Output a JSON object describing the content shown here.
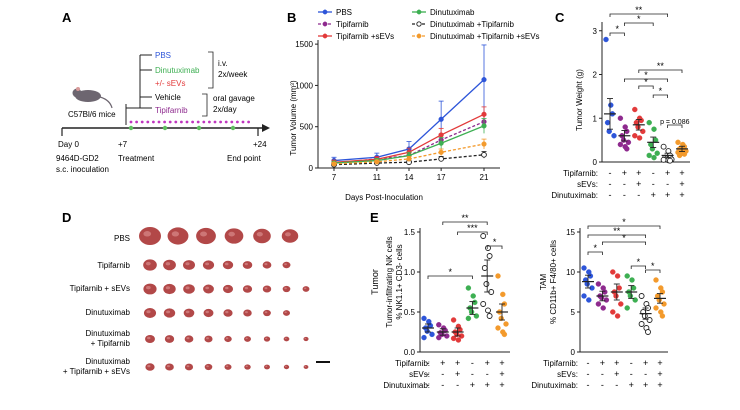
{
  "colors": {
    "pbs": "#2d55d9",
    "tipifarnib": "#8e2a8e",
    "tip_sevs": "#e23a3a",
    "dinutuximab": "#3daf52",
    "dinu_tip": "#222222",
    "dinu_tip_sevs": "#f39a2c",
    "treatment_dot": "#c036c0",
    "timeline_green": "#5fbf5f",
    "tumor": "#b24848"
  },
  "panel_labels": {
    "a": "A",
    "b": "B",
    "c": "C",
    "d": "D",
    "e": "E"
  },
  "panel_a": {
    "mouse_strain": "C57Bl/6 mice",
    "arm_pbs": "PBS",
    "arm_dinutuximab": "Dinutuximab",
    "arm_sevs": "+/- sEVs",
    "arm_vehicle": "Vehicle",
    "arm_tipifarnib": "Tipifarnib",
    "route_iv": "i.v.",
    "freq_iv": "2x/week",
    "route_oral": "oral gavage",
    "freq_oral": "2x/day",
    "day0": "Day 0",
    "day7": "+7",
    "day24": "+24",
    "inoculation_1": "9464D-GD2",
    "inoculation_2": "s.c. inoculation",
    "treatment": "Treatment",
    "end_point": "End point"
  },
  "panel_d": {
    "rows": [
      "PBS",
      "Tipifarnib",
      "Tipifarnib + sEVs",
      "Dinutuximab",
      "Dinutuximab",
      "+ Tipifarnib",
      "Dinutuximab",
      "+ Tipifarnib + sEVs"
    ],
    "tumor_counts": [
      6,
      8,
      9,
      8,
      9,
      9
    ],
    "tumor_size_level": [
      1.0,
      0.62,
      0.6,
      0.55,
      0.45,
      0.42
    ]
  },
  "condition_table": {
    "row_tip": "Tipifarnib:",
    "row_sevs": "sEVs:",
    "row_dinu": "Dinutuximab:",
    "tip": [
      "-",
      "+",
      "+",
      "-",
      "+",
      "+"
    ],
    "sevs": [
      "-",
      "-",
      "+",
      "-",
      "-",
      "+"
    ],
    "dinu": [
      "-",
      "-",
      "-",
      "+",
      "+",
      "+"
    ]
  },
  "chart_data": [
    {
      "type": "line",
      "panel": "B",
      "xlabel": "Days Post-Inoculation",
      "ylabel": "Tumor Volume (mm³)",
      "x": [
        7,
        11,
        14,
        17,
        21
      ],
      "xticks": [
        "7",
        "11",
        "14",
        "17",
        "21"
      ],
      "yticks": [
        "0",
        "500",
        "1000",
        "1500"
      ],
      "ylim": [
        0,
        1550
      ],
      "legend": [
        "PBS",
        "Tipifarnib",
        "Tipifarnib +sEVs",
        "Dinutuximab",
        "Dinutuximab +Tipifarnib",
        "Dinutuximab +Tipifarnib +sEVs"
      ],
      "series": [
        {
          "name": "PBS",
          "key": "pbs",
          "dashed": false,
          "hollow": false,
          "values": [
            90,
            130,
            230,
            590,
            1070
          ],
          "err": [
            40,
            50,
            90,
            220,
            420
          ]
        },
        {
          "name": "Tipifarnib",
          "key": "tipifarnib",
          "dashed": true,
          "hollow": false,
          "values": [
            60,
            110,
            150,
            340,
            560
          ],
          "err": [
            20,
            30,
            40,
            70,
            80
          ]
        },
        {
          "name": "Tipifarnib +sEVs",
          "key": "tip_sevs",
          "dashed": false,
          "hollow": false,
          "values": [
            70,
            105,
            190,
            400,
            650
          ],
          "err": [
            25,
            30,
            50,
            80,
            90
          ]
        },
        {
          "name": "Dinutuximab",
          "key": "dinutuximab",
          "dashed": false,
          "hollow": false,
          "values": [
            60,
            90,
            150,
            300,
            510
          ],
          "err": [
            20,
            25,
            40,
            70,
            90
          ]
        },
        {
          "name": "Dinutuximab +Tipifarnib",
          "key": "dinu_tip",
          "dashed": true,
          "hollow": true,
          "values": [
            40,
            60,
            70,
            110,
            160
          ],
          "err": [
            10,
            15,
            20,
            30,
            40
          ]
        },
        {
          "name": "Dinutuximab +Tipifarnib +sEVs",
          "key": "dinu_tip_sevs",
          "dashed": true,
          "hollow": false,
          "values": [
            50,
            75,
            110,
            190,
            290
          ],
          "err": [
            15,
            20,
            30,
            40,
            60
          ]
        }
      ]
    },
    {
      "type": "scatter",
      "panel": "C",
      "ylabel": "Tumor Weight (g)",
      "yticks": [
        "0",
        "1",
        "2",
        "3"
      ],
      "ylim": [
        0,
        3.2
      ],
      "sig": [
        "*",
        "*",
        "**",
        "*",
        "*",
        "**",
        "*",
        "p = 0.086"
      ],
      "groups": [
        {
          "key": "pbs",
          "hollow": false,
          "mean": 1.1,
          "err": 0.35,
          "values": [
            2.8,
            1.3,
            1.1,
            0.9,
            0.7,
            0.6
          ]
        },
        {
          "key": "tipifarnib",
          "hollow": false,
          "mean": 0.6,
          "err": 0.12,
          "values": [
            1.0,
            0.8,
            0.7,
            0.6,
            0.5,
            0.45,
            0.4,
            0.35,
            0.3
          ]
        },
        {
          "key": "tip_sevs",
          "hollow": false,
          "mean": 0.85,
          "err": 0.12,
          "values": [
            1.2,
            1.0,
            0.95,
            0.9,
            0.8,
            0.7,
            0.6,
            0.55
          ]
        },
        {
          "key": "dinutuximab",
          "hollow": false,
          "mean": 0.45,
          "err": 0.12,
          "values": [
            0.9,
            0.75,
            0.5,
            0.4,
            0.3,
            0.2,
            0.15,
            0.1
          ]
        },
        {
          "key": "dinu_tip",
          "hollow": true,
          "mean": 0.15,
          "err": 0.05,
          "values": [
            0.35,
            0.25,
            0.15,
            0.1,
            0.08,
            0.06,
            0.05,
            0.04,
            0.03
          ]
        },
        {
          "key": "dinu_tip_sevs",
          "hollow": false,
          "mean": 0.3,
          "err": 0.06,
          "values": [
            0.45,
            0.4,
            0.35,
            0.3,
            0.28,
            0.25,
            0.22,
            0.2,
            0.18,
            0.15
          ]
        }
      ]
    },
    {
      "type": "scatter",
      "panel": "E-left",
      "title": "Tumor",
      "ylabel": "Tumor-infiltrating NK cells",
      "ylabel2": "% NK1.1+ CD3- cells",
      "yticks": [
        "0.0",
        "0.5",
        "1.0",
        "1.5"
      ],
      "ylim": [
        0,
        1.55
      ],
      "sig": [
        "**",
        "***",
        "*",
        "*"
      ],
      "groups": [
        {
          "key": "pbs",
          "hollow": false,
          "mean": 0.3,
          "err": 0.05,
          "values": [
            0.42,
            0.38,
            0.33,
            0.3,
            0.26,
            0.22,
            0.18
          ]
        },
        {
          "key": "tipifarnib",
          "hollow": false,
          "mean": 0.25,
          "err": 0.04,
          "values": [
            0.34,
            0.3,
            0.27,
            0.24,
            0.22,
            0.2,
            0.18
          ]
        },
        {
          "key": "tip_sevs",
          "hollow": false,
          "mean": 0.25,
          "err": 0.05,
          "values": [
            0.4,
            0.32,
            0.28,
            0.25,
            0.22,
            0.2,
            0.17,
            0.15
          ]
        },
        {
          "key": "dinutuximab",
          "hollow": false,
          "mean": 0.55,
          "err": 0.08,
          "values": [
            0.8,
            0.7,
            0.62,
            0.55,
            0.5,
            0.45,
            0.42
          ]
        },
        {
          "key": "dinu_tip",
          "hollow": true,
          "mean": 0.95,
          "err": 0.2,
          "values": [
            1.45,
            1.3,
            1.2,
            1.05,
            0.85,
            0.75,
            0.6,
            0.52,
            0.45
          ]
        },
        {
          "key": "dinu_tip_sevs",
          "hollow": false,
          "mean": 0.5,
          "err": 0.1,
          "values": [
            0.95,
            0.72,
            0.6,
            0.5,
            0.42,
            0.35,
            0.3,
            0.25,
            0.22
          ]
        }
      ]
    },
    {
      "type": "scatter",
      "panel": "E-right",
      "ylabel": "TAM",
      "ylabel2": "% CD11b+ F4/80+ cells",
      "yticks": [
        "0",
        "5",
        "10",
        "15"
      ],
      "ylim": [
        0,
        15.5
      ],
      "sig": [
        "*",
        "**",
        "*",
        "*",
        "*",
        "*"
      ],
      "groups": [
        {
          "key": "pbs",
          "hollow": false,
          "mean": 8.8,
          "err": 0.8,
          "values": [
            10.5,
            10.0,
            9.5,
            9.0,
            8.5,
            8.0,
            7.0,
            6.5
          ]
        },
        {
          "key": "tipifarnib",
          "hollow": false,
          "mean": 7.0,
          "err": 0.6,
          "values": [
            8.5,
            8.0,
            7.5,
            7.0,
            6.8,
            6.5,
            6.0,
            5.5
          ]
        },
        {
          "key": "tip_sevs",
          "hollow": false,
          "mean": 7.5,
          "err": 1.0,
          "values": [
            10.0,
            9.5,
            8.0,
            7.5,
            7.0,
            6.0,
            5.0,
            4.5
          ]
        },
        {
          "key": "dinutuximab",
          "hollow": false,
          "mean": 7.5,
          "err": 0.8,
          "values": [
            9.5,
            9.0,
            8.0,
            7.5,
            7.0,
            6.5,
            5.5
          ]
        },
        {
          "key": "dinu_tip",
          "hollow": true,
          "mean": 4.8,
          "err": 0.7,
          "values": [
            7.0,
            6.0,
            5.5,
            5.0,
            4.5,
            4.0,
            3.5,
            3.0,
            2.5
          ]
        },
        {
          "key": "dinu_tip_sevs",
          "hollow": false,
          "mean": 6.7,
          "err": 0.6,
          "values": [
            9.0,
            8.0,
            7.5,
            7.0,
            6.5,
            6.0,
            5.5,
            5.0,
            4.5
          ]
        }
      ]
    }
  ]
}
